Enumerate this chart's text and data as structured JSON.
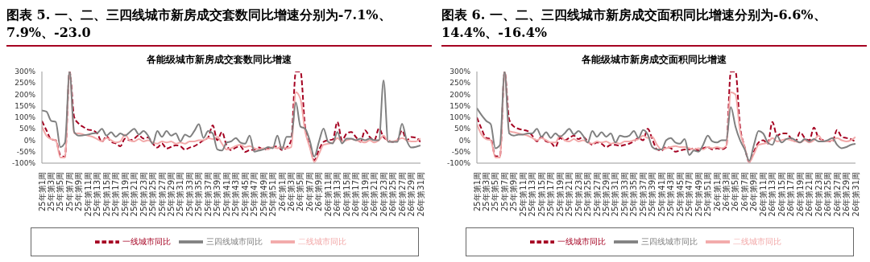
{
  "chart_data": [
    {
      "type": "line",
      "title": "图表 5. 一、二、三四线城市新房成交套数同比增速分别为-7.1%、7.9%、-23.0",
      "subtitle": "各能级城市新房成交套数同比增速",
      "categories": [
        "25年第1周",
        null,
        "25年第3周",
        null,
        "25年第5周",
        null,
        "25年第7周",
        null,
        "25年第9周",
        null,
        "25年第11周",
        null,
        "25年第13周",
        null,
        "25年第15周",
        null,
        "25年第17周",
        null,
        "25年第19周",
        null,
        "25年第21周",
        null,
        "25年第23周",
        null,
        "25年第25周",
        null,
        "25年第27周",
        null,
        "25年第29周",
        null,
        "25年第31周",
        null,
        "25年第33周",
        null,
        "25年第35周",
        null,
        "25年第37周",
        null,
        "25年第39周",
        null,
        "25年第41周",
        null,
        "25年第43周",
        null,
        "25年第45周",
        null,
        "25年第47周",
        null,
        "25年第49周",
        null,
        "25年第51周",
        null,
        "26年第1周",
        null,
        "26年第3周",
        null,
        "26年第5周",
        null,
        "26年第7周",
        null,
        "26年第9周",
        null,
        "26年第11周",
        null,
        "26年第13周",
        null,
        "26年第15周",
        null,
        "26年第17周",
        null,
        "26年第19周",
        null,
        "26年第21周",
        null,
        "26年第23周",
        null,
        "26年第25周",
        null,
        "26年第27周",
        null,
        "26年第29周",
        null,
        "26年第31周"
      ],
      "series": [
        {
          "name": "一线城市同比",
          "color": "#a50021",
          "line_style": "dashed",
          "values": [
            84,
            43,
            4,
            0,
            -65,
            -72,
            300,
            101,
            72,
            58,
            46,
            43,
            29,
            -7,
            17,
            -7,
            -14,
            -26,
            7,
            0,
            7,
            22,
            7,
            12,
            -14,
            -32,
            -14,
            -36,
            -29,
            -22,
            -26,
            -41,
            -32,
            -26,
            -14,
            0,
            12,
            65,
            0,
            36,
            -22,
            -43,
            -32,
            -26,
            -51,
            -43,
            -41,
            -32,
            -41,
            -36,
            -32,
            -26,
            -43,
            -32,
            0,
            300,
            300,
            58,
            -22,
            -87,
            -43,
            -7,
            0,
            3,
            80,
            0,
            29,
            36,
            14,
            -7,
            43,
            14,
            0,
            51,
            14,
            0,
            -7,
            0,
            43,
            0,
            14,
            11,
            -7
          ]
        },
        {
          "name": "二线城市同比",
          "color": "#f2a9a9",
          "line_style": "solid",
          "values": [
            60,
            20,
            5,
            0,
            -75,
            -75,
            300,
            30,
            30,
            25,
            20,
            15,
            5,
            -5,
            10,
            0,
            -10,
            -5,
            25,
            0,
            -5,
            5,
            -5,
            0,
            -10,
            -15,
            -5,
            -10,
            -5,
            -15,
            -10,
            -15,
            -5,
            -5,
            0,
            0,
            10,
            5,
            15,
            -15,
            -40,
            -35,
            -25,
            -20,
            -30,
            -25,
            -35,
            -40,
            -35,
            -40,
            -30,
            -35,
            -30,
            -35,
            -30,
            210,
            180,
            40,
            -30,
            -95,
            -60,
            -20,
            -15,
            -10,
            10,
            -5,
            0,
            5,
            0,
            -5,
            -10,
            0,
            -10,
            0,
            20,
            -5,
            -5,
            0,
            10,
            0,
            -5,
            -5,
            8
          ]
        },
        {
          "name": "三四线城市同比",
          "color": "#808080",
          "line_style": "solid",
          "values": [
            130,
            125,
            85,
            80,
            -30,
            -10,
            300,
            36,
            20,
            22,
            25,
            30,
            32,
            50,
            20,
            35,
            15,
            30,
            20,
            35,
            50,
            25,
            40,
            20,
            -15,
            40,
            15,
            40,
            20,
            30,
            -5,
            25,
            15,
            40,
            70,
            10,
            40,
            30,
            -40,
            -45,
            -10,
            -5,
            10,
            -10,
            -15,
            20,
            -50,
            -45,
            -40,
            -30,
            -35,
            20,
            -40,
            15,
            15,
            165,
            60,
            51,
            0,
            -72,
            -7,
            51,
            -7,
            -14,
            36,
            -14,
            7,
            7,
            0,
            7,
            0,
            7,
            0,
            0,
            261,
            -7,
            -7,
            -7,
            72,
            0,
            -32,
            -29,
            -23
          ]
        }
      ],
      "ylim": [
        -100,
        300
      ],
      "yticks": [
        {
          "value": -100,
          "label": "-100%"
        },
        {
          "value": -50,
          "label": "-50%"
        },
        {
          "value": 0,
          "label": "0%"
        },
        {
          "value": 50,
          "label": "50%"
        },
        {
          "value": 100,
          "label": "100%"
        },
        {
          "value": 150,
          "label": "150%"
        },
        {
          "value": 200,
          "label": "200%"
        },
        {
          "value": 250,
          "label": "250%"
        },
        {
          "value": 300,
          "label": "300%"
        }
      ],
      "grid": false,
      "legend": "bottom",
      "marker": "none"
    },
    {
      "type": "line",
      "title": "图表 6. 一、二、三四线城市新房成交面积同比增速分别为-6.6%、14.4%、-16.4%",
      "subtitle": "各能级城市新房成交面积同比增速",
      "categories": [
        "25年第1周",
        null,
        "25年第3周",
        null,
        "25年第5周",
        null,
        "25年第7周",
        null,
        "25年第9周",
        null,
        "25年第11周",
        null,
        "25年第13周",
        null,
        "25年第15周",
        null,
        "25年第17周",
        null,
        "25年第19周",
        null,
        "25年第21周",
        null,
        "25年第23周",
        null,
        "25年第25周",
        null,
        "25年第27周",
        null,
        "25年第29周",
        null,
        "25年第31周",
        null,
        "25年第33周",
        null,
        "25年第35周",
        null,
        "25年第37周",
        null,
        "25年第39周",
        null,
        "25年第41周",
        null,
        "25年第43周",
        null,
        "25年第45周",
        null,
        "25年第47周",
        null,
        "25年第49周",
        null,
        "25年第51周",
        null,
        "26年第1周",
        null,
        "26年第3周",
        null,
        "26年第5周",
        null,
        "26年第7周",
        null,
        "26年第9周",
        null,
        "26年第11周",
        null,
        "26年第13周",
        null,
        "26年第15周",
        null,
        "26年第17周",
        null,
        "26年第19周",
        null,
        "26年第21周",
        null,
        "26年第23周",
        null,
        "26年第25周",
        null,
        "26年第27周",
        null,
        "26年第29周",
        null,
        "26年第31周"
      ],
      "series": [
        {
          "name": "一线城市同比",
          "color": "#a50021",
          "line_style": "dashed",
          "values": [
            100,
            50,
            10,
            5,
            -70,
            -70,
            300,
            90,
            60,
            50,
            45,
            40,
            20,
            -5,
            15,
            -5,
            -10,
            -30,
            10,
            0,
            10,
            20,
            5,
            15,
            -5,
            -20,
            -10,
            -15,
            -30,
            -20,
            -20,
            -25,
            -20,
            -15,
            -5,
            10,
            0,
            50,
            5,
            -40,
            -45,
            -30,
            -35,
            -50,
            -45,
            -40,
            -40,
            -35,
            -45,
            -35,
            -30,
            -40,
            -35,
            -40,
            -30,
            300,
            300,
            60,
            -30,
            -95,
            -50,
            -10,
            0,
            -15,
            80,
            20,
            30,
            30,
            10,
            -5,
            35,
            10,
            0,
            55,
            10,
            0,
            -5,
            -5,
            45,
            15,
            10,
            5,
            -7
          ]
        },
        {
          "name": "二线城市同比",
          "color": "#f2a9a9",
          "line_style": "solid",
          "values": [
            70,
            25,
            5,
            0,
            -75,
            -75,
            300,
            40,
            35,
            30,
            25,
            20,
            10,
            0,
            10,
            0,
            -10,
            -10,
            20,
            0,
            -5,
            5,
            -5,
            0,
            -10,
            -15,
            -5,
            -10,
            -5,
            -15,
            -10,
            -15,
            -5,
            -5,
            0,
            5,
            20,
            10,
            15,
            -20,
            -40,
            -35,
            -30,
            -25,
            -30,
            -30,
            -35,
            -40,
            -35,
            -40,
            -30,
            -35,
            -30,
            -35,
            -25,
            210,
            200,
            40,
            -30,
            -95,
            -60,
            -20,
            -15,
            -10,
            10,
            -5,
            0,
            5,
            0,
            -5,
            -10,
            0,
            -10,
            0,
            20,
            -5,
            -5,
            0,
            10,
            0,
            -5,
            0,
            14
          ]
        },
        {
          "name": "三四线城市同比",
          "color": "#808080",
          "line_style": "solid",
          "values": [
            140,
            110,
            85,
            70,
            -35,
            -20,
            300,
            30,
            20,
            25,
            25,
            30,
            30,
            50,
            15,
            35,
            10,
            30,
            15,
            30,
            50,
            25,
            40,
            20,
            -10,
            40,
            15,
            35,
            15,
            30,
            -10,
            20,
            15,
            20,
            40,
            10,
            45,
            25,
            -30,
            -40,
            -40,
            0,
            10,
            -10,
            -15,
            5,
            -65,
            -45,
            -50,
            -20,
            20,
            -5,
            -10,
            0,
            0,
            145,
            60,
            0,
            -40,
            -90,
            -20,
            40,
            30,
            -10,
            -20,
            20,
            -10,
            5,
            10,
            0,
            -10,
            5,
            -5,
            5,
            -5,
            -5,
            0,
            10,
            -20,
            -35,
            -30,
            -20,
            -16
          ]
        }
      ],
      "ylim": [
        -100,
        300
      ],
      "yticks": [
        {
          "value": -100,
          "label": "-100%"
        },
        {
          "value": -50,
          "label": "-50%"
        },
        {
          "value": 0,
          "label": "0%"
        },
        {
          "value": 50,
          "label": "50%"
        },
        {
          "value": 100,
          "label": "100%"
        },
        {
          "value": 150,
          "label": "150%"
        },
        {
          "value": 200,
          "label": "200%"
        },
        {
          "value": 250,
          "label": "250%"
        },
        {
          "value": 300,
          "label": "300%"
        }
      ],
      "grid": false,
      "legend": "bottom",
      "marker": "none"
    }
  ]
}
